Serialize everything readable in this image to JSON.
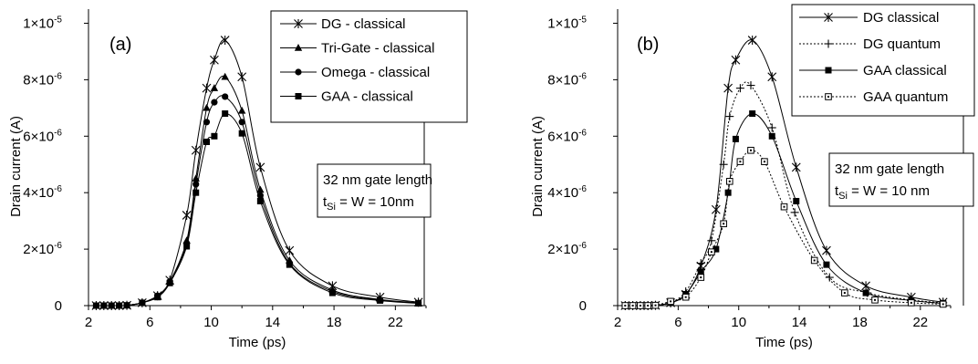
{
  "chart_data": [
    {
      "type": "line",
      "panel_label": "(a)",
      "xlabel": "Time (ps)",
      "ylabel": "Drain current (A)",
      "xlim": [
        2,
        24
      ],
      "ylim": [
        0,
        1.05e-05
      ],
      "xticks": [
        2,
        6,
        10,
        14,
        18,
        22
      ],
      "yticks": [
        {
          "value": 0,
          "label": "0"
        },
        {
          "value": 2e-06,
          "base": "2×10",
          "exp": "-6"
        },
        {
          "value": 4e-06,
          "base": "4×10",
          "exp": "-6"
        },
        {
          "value": 6e-06,
          "base": "6×10",
          "exp": "-6"
        },
        {
          "value": 8e-06,
          "base": "8×10",
          "exp": "-6"
        },
        {
          "value": 1e-05,
          "base": "1×10",
          "exp": "-5"
        }
      ],
      "legend_position": "top-right",
      "annotation": {
        "line1": "32 nm gate length",
        "line2_t": "t",
        "line2_sub": "Si",
        "line2_rest": " = W = 10nm"
      },
      "series": [
        {
          "name": "DG - classical",
          "marker": "star",
          "dash": "solid",
          "x": [
            2.5,
            3.0,
            3.5,
            4.0,
            4.5,
            5.5,
            6.5,
            7.3,
            8.4,
            9.0,
            9.7,
            10.2,
            10.9,
            12.0,
            13.2,
            15.1,
            17.9,
            21.0,
            23.5
          ],
          "y": [
            0,
            0,
            0,
            0,
            1e-08,
            1e-07,
            3.5e-07,
            9e-07,
            3.2e-06,
            5.5e-06,
            7.7e-06,
            8.7e-06,
            9.4e-06,
            8.1e-06,
            4.9e-06,
            1.95e-06,
            7e-07,
            3e-07,
            1.2e-07
          ]
        },
        {
          "name": "Tri-Gate - classical",
          "marker": "triangle",
          "dash": "solid",
          "x": [
            2.5,
            3.0,
            3.5,
            4.0,
            4.5,
            5.5,
            6.5,
            7.3,
            8.4,
            9.0,
            9.7,
            10.2,
            10.9,
            12.0,
            13.2,
            15.1,
            17.9,
            21.0,
            23.5
          ],
          "y": [
            0,
            0,
            0,
            0,
            1e-08,
            1e-07,
            3.5e-07,
            8.5e-07,
            2.3e-06,
            4.5e-06,
            7e-06,
            7.7e-06,
            8.1e-06,
            6.9e-06,
            4.1e-06,
            1.6e-06,
            5.5e-07,
            2.2e-07,
            1e-07
          ]
        },
        {
          "name": "Omega - classical",
          "marker": "circle",
          "dash": "solid",
          "x": [
            2.5,
            3.0,
            3.5,
            4.0,
            4.5,
            5.5,
            6.5,
            7.3,
            8.4,
            9.0,
            9.7,
            10.2,
            10.9,
            12.0,
            13.2,
            15.1,
            17.9,
            21.0,
            23.5
          ],
          "y": [
            0,
            0,
            0,
            0,
            1e-08,
            1e-07,
            3.5e-07,
            8.5e-07,
            2.2e-06,
            4.3e-06,
            6.5e-06,
            7.2e-06,
            7.4e-06,
            6.5e-06,
            3.9e-06,
            1.5e-06,
            5e-07,
            2e-07,
            9e-08
          ]
        },
        {
          "name": "GAA - classical",
          "marker": "square",
          "dash": "solid",
          "x": [
            2.5,
            3.0,
            3.5,
            4.0,
            4.5,
            5.5,
            6.5,
            7.3,
            8.4,
            9.0,
            9.7,
            10.2,
            10.9,
            12.0,
            13.2,
            15.1,
            17.9,
            21.0,
            23.5
          ],
          "y": [
            0,
            0,
            0,
            0,
            1e-08,
            1e-07,
            3e-07,
            8e-07,
            2.1e-06,
            4e-06,
            5.8e-06,
            6e-06,
            6.8e-06,
            6.1e-06,
            3.7e-06,
            1.45e-06,
            4.5e-07,
            1.8e-07,
            8e-08
          ]
        }
      ]
    },
    {
      "type": "line",
      "panel_label": "(b)",
      "xlabel": "Time (ps)",
      "ylabel": "Drain current (A)",
      "xlim": [
        2,
        24
      ],
      "ylim": [
        0,
        1.05e-05
      ],
      "xticks": [
        2,
        6,
        10,
        14,
        18,
        22
      ],
      "yticks": [
        {
          "value": 0,
          "label": "0"
        },
        {
          "value": 2e-06,
          "base": "2×10",
          "exp": "-6"
        },
        {
          "value": 4e-06,
          "base": "4×10",
          "exp": "-6"
        },
        {
          "value": 6e-06,
          "base": "6×10",
          "exp": "-6"
        },
        {
          "value": 8e-06,
          "base": "8×10",
          "exp": "-6"
        },
        {
          "value": 1e-05,
          "base": "1×10",
          "exp": "-5"
        }
      ],
      "legend_position": "top-right",
      "annotation": {
        "line1": "32 nm gate length",
        "line2_t": "t",
        "line2_sub": "Si",
        "line2_rest": " = W = 10 nm"
      },
      "series": [
        {
          "name": "DG classical",
          "marker": "star",
          "dash": "solid",
          "x": [
            2.5,
            3.0,
            3.5,
            4.0,
            4.5,
            5.5,
            6.5,
            7.5,
            8.5,
            9.3,
            9.8,
            10.9,
            12.2,
            13.8,
            15.8,
            18.4,
            21.4,
            23.5
          ],
          "y": [
            0,
            0,
            0,
            0,
            1e-08,
            1e-07,
            4e-07,
            1.4e-06,
            3.4e-06,
            7.7e-06,
            8.7e-06,
            9.4e-06,
            8.1e-06,
            4.9e-06,
            1.95e-06,
            7e-07,
            3e-07,
            1.2e-07
          ]
        },
        {
          "name": "DG quantum",
          "marker": "plus",
          "dash": "dotted",
          "x": [
            2.5,
            3.0,
            3.5,
            4.0,
            4.5,
            5.5,
            6.5,
            7.5,
            8.2,
            9.0,
            9.4,
            10.1,
            10.8,
            12.2,
            13.7,
            16.0,
            18.5,
            21.4,
            23.5
          ],
          "y": [
            0,
            0,
            0,
            0,
            1e-08,
            1e-07,
            5e-07,
            1.5e-06,
            2.3e-06,
            5e-06,
            6.7e-06,
            7.7e-06,
            7.8e-06,
            6.3e-06,
            3.3e-06,
            1e-06,
            4.5e-07,
            2e-07,
            1e-07
          ]
        },
        {
          "name": "GAA classical",
          "marker": "square",
          "dash": "solid",
          "x": [
            2.5,
            3.0,
            3.5,
            4.0,
            4.5,
            5.5,
            6.5,
            7.5,
            8.5,
            9.3,
            9.8,
            10.9,
            12.2,
            13.8,
            15.8,
            18.4,
            21.4,
            23.5
          ],
          "y": [
            0,
            0,
            0,
            0,
            1e-08,
            1e-07,
            4e-07,
            1.2e-06,
            2e-06,
            4e-06,
            5.9e-06,
            6.8e-06,
            6e-06,
            3.7e-06,
            1.45e-06,
            4.5e-07,
            1.8e-07,
            8e-08
          ]
        },
        {
          "name": "GAA quantum",
          "marker": "open-square",
          "dash": "dotted",
          "x": [
            2.5,
            3.0,
            3.5,
            4.0,
            4.5,
            5.5,
            6.5,
            7.5,
            8.2,
            9.0,
            9.4,
            10.1,
            10.8,
            11.7,
            13.0,
            15.0,
            17.0,
            19.0,
            21.4,
            23.5
          ],
          "y": [
            0,
            0,
            0,
            0,
            1e-08,
            1.5e-07,
            3e-07,
            1e-06,
            1.9e-06,
            2.9e-06,
            4.4e-06,
            5.1e-06,
            5.5e-06,
            5.1e-06,
            3.5e-06,
            1.6e-06,
            4.5e-07,
            2e-07,
            1e-07,
            5e-08
          ]
        }
      ]
    }
  ]
}
